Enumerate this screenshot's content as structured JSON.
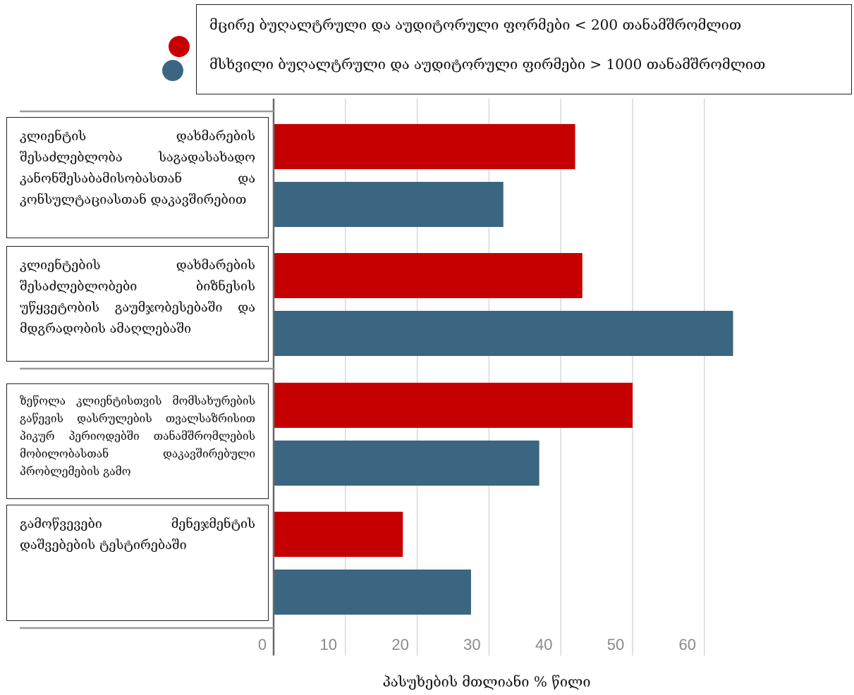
{
  "chart_data": {
    "type": "bar",
    "orientation": "horizontal",
    "categories": [
      "კლიენტის დახმარების შესაძლებლობა საგადასახადო კანონშესაბამისობასთან და კონსულტაციასთან დაკავშირებით",
      "კლიენტების დახმარების შესაძლებლობები ბიზნესის უწყვეტობის გაუმჯობესებაში და მდგრადობის ამაღლებაში",
      "ზეწოლა კლიენტისთვის მომსახურების გაწევის დასრულების თვალსაზრისით პიკურ პერიოდებში თანამშრომლების მობილობასთან დაკავშირებული პრობლემების გამო",
      "გამოწვევები მენეჯმენტის დაშვებების ტესტირებაში"
    ],
    "series": [
      {
        "name": "მცირე ბუღალტრული და აუდიტორული ფორმები < 200 თანამშრომლით",
        "color": "#c60000",
        "values": [
          42,
          43,
          50,
          18
        ]
      },
      {
        "name": "მსხვილი ბუღალტრული და აუდიტორული ფირმები > 1000 თანამშრომლით",
        "color": "#3b6682",
        "values": [
          32,
          64,
          37,
          27.5
        ]
      }
    ],
    "xlabel": "პასუხების მთლიანი % წილი",
    "ylabel": "",
    "xlim": [
      0,
      65
    ],
    "xticks": [
      0,
      10,
      20,
      30,
      40,
      50,
      60
    ],
    "grid": true,
    "legend_position": "top"
  }
}
